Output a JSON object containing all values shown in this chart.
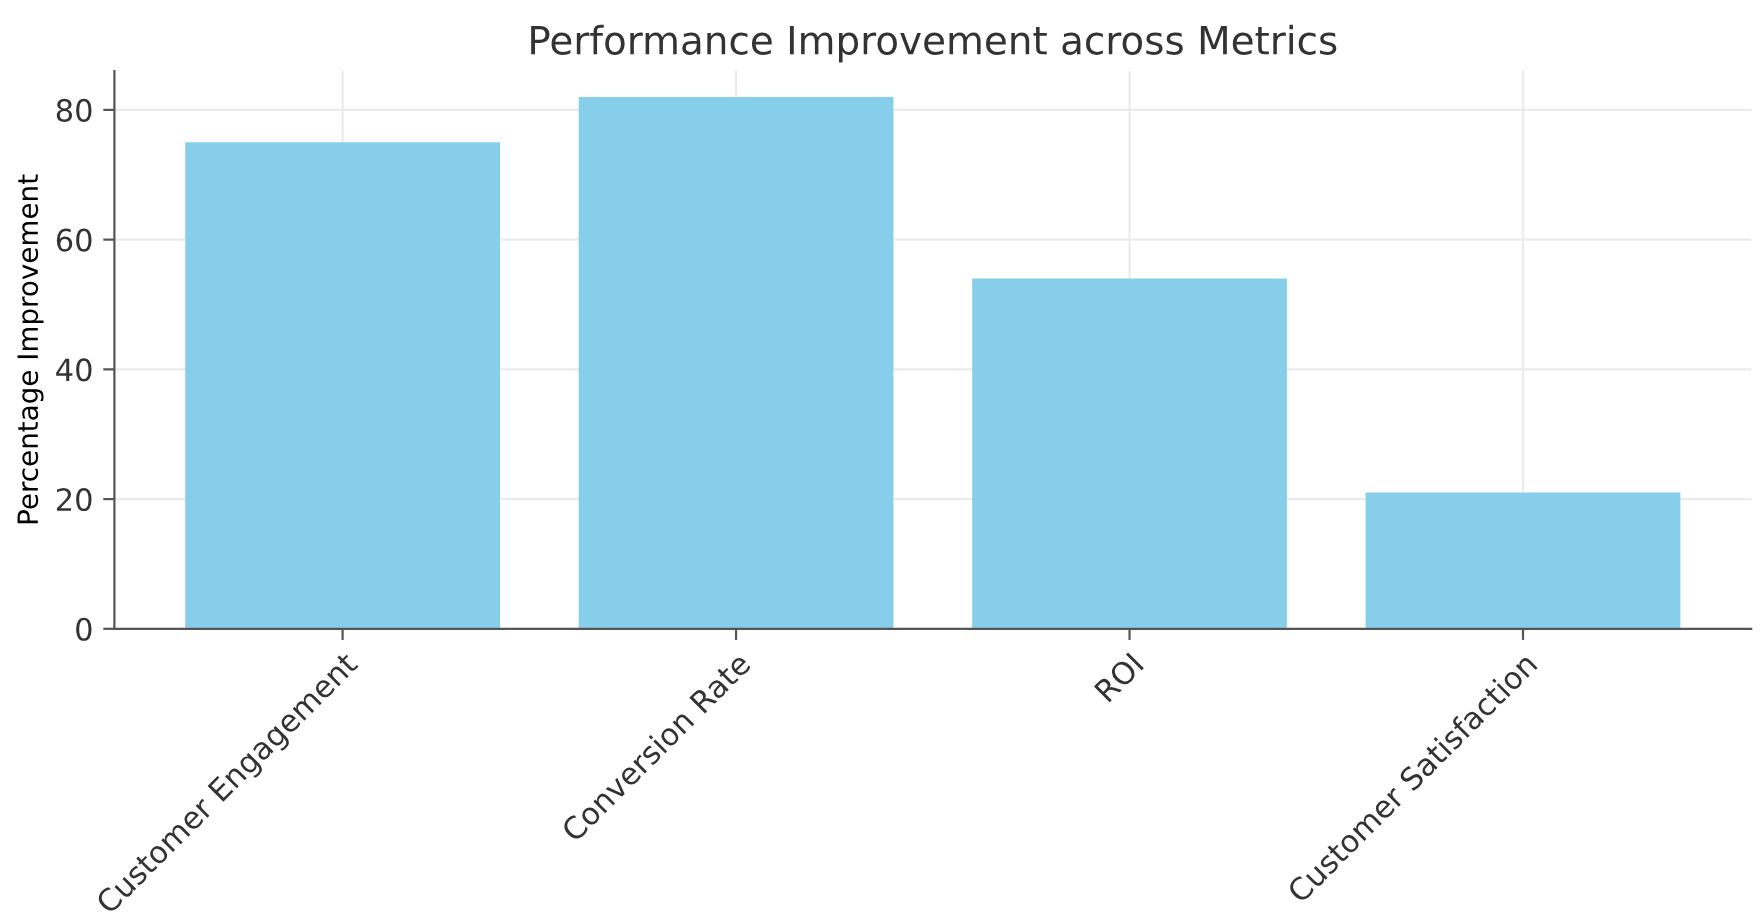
{
  "chart_data": {
    "type": "bar",
    "title": "Performance Improvement across Metrics",
    "ylabel": "Percentage Improvement",
    "categories": [
      "Customer Engagement",
      "Conversion Rate",
      "ROI",
      "Customer Satisfaction"
    ],
    "values": [
      75,
      82,
      54,
      21
    ],
    "color": "#87ceeb",
    "ylim": [
      0,
      86
    ],
    "yticks": [
      0,
      20,
      40,
      60,
      80
    ],
    "grid": true
  }
}
